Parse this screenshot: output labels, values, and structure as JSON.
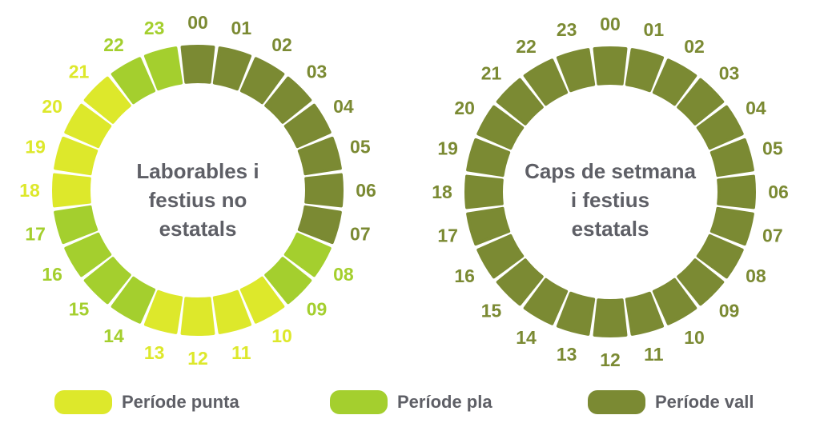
{
  "colors": {
    "punta": "#dde82b",
    "pla": "#a4cf2e",
    "vall": "#7b8a33"
  },
  "clocks": [
    {
      "title_lines": [
        "Laborables i",
        "festius no",
        "estatals"
      ],
      "hours": [
        {
          "label": "00",
          "period": "vall"
        },
        {
          "label": "01",
          "period": "vall"
        },
        {
          "label": "02",
          "period": "vall"
        },
        {
          "label": "03",
          "period": "vall"
        },
        {
          "label": "04",
          "period": "vall"
        },
        {
          "label": "05",
          "period": "vall"
        },
        {
          "label": "06",
          "period": "vall"
        },
        {
          "label": "07",
          "period": "vall"
        },
        {
          "label": "08",
          "period": "pla"
        },
        {
          "label": "09",
          "period": "pla"
        },
        {
          "label": "10",
          "period": "punta"
        },
        {
          "label": "11",
          "period": "punta"
        },
        {
          "label": "12",
          "period": "punta"
        },
        {
          "label": "13",
          "period": "punta"
        },
        {
          "label": "14",
          "period": "pla"
        },
        {
          "label": "15",
          "period": "pla"
        },
        {
          "label": "16",
          "period": "pla"
        },
        {
          "label": "17",
          "period": "pla"
        },
        {
          "label": "18",
          "period": "punta"
        },
        {
          "label": "19",
          "period": "punta"
        },
        {
          "label": "20",
          "period": "punta"
        },
        {
          "label": "21",
          "period": "punta"
        },
        {
          "label": "22",
          "period": "pla"
        },
        {
          "label": "23",
          "period": "pla"
        }
      ]
    },
    {
      "title_lines": [
        "Caps de setmana",
        "i festius",
        "estatals"
      ],
      "hours": [
        {
          "label": "00",
          "period": "vall"
        },
        {
          "label": "01",
          "period": "vall"
        },
        {
          "label": "02",
          "period": "vall"
        },
        {
          "label": "03",
          "period": "vall"
        },
        {
          "label": "04",
          "period": "vall"
        },
        {
          "label": "05",
          "period": "vall"
        },
        {
          "label": "06",
          "period": "vall"
        },
        {
          "label": "07",
          "period": "vall"
        },
        {
          "label": "08",
          "period": "vall"
        },
        {
          "label": "09",
          "period": "vall"
        },
        {
          "label": "10",
          "period": "vall"
        },
        {
          "label": "11",
          "period": "vall"
        },
        {
          "label": "12",
          "period": "vall"
        },
        {
          "label": "13",
          "period": "vall"
        },
        {
          "label": "14",
          "period": "vall"
        },
        {
          "label": "15",
          "period": "vall"
        },
        {
          "label": "16",
          "period": "vall"
        },
        {
          "label": "17",
          "period": "vall"
        },
        {
          "label": "18",
          "period": "vall"
        },
        {
          "label": "19",
          "period": "vall"
        },
        {
          "label": "20",
          "period": "vall"
        },
        {
          "label": "21",
          "period": "vall"
        },
        {
          "label": "22",
          "period": "vall"
        },
        {
          "label": "23",
          "period": "vall"
        }
      ]
    }
  ],
  "legend": [
    {
      "period": "punta",
      "label": "Període punta"
    },
    {
      "period": "pla",
      "label": "Període pla"
    },
    {
      "period": "vall",
      "label": "Període vall"
    }
  ]
}
